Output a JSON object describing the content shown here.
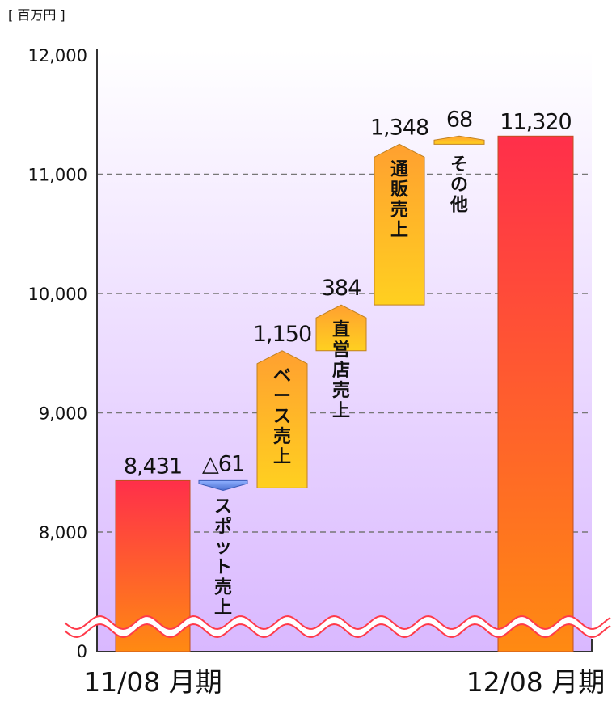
{
  "chart_data": {
    "type": "bar",
    "subtype": "waterfall",
    "unit_label": "[ 百万円 ]",
    "y_ticks": [
      "0",
      "8,000",
      "9,000",
      "10,000",
      "11,000",
      "12,000"
    ],
    "ylim": [
      7000,
      12000
    ],
    "axis_break": true,
    "grid": "dashed",
    "colors": {
      "total_top": "#ff2f4a",
      "total_bottom": "#ff8a12",
      "step_top": "#ffa030",
      "step_bottom": "#ffd020",
      "negative": "#5b7fd8",
      "plot_bg_top": "#ffffff",
      "plot_bg_bottom": "#d9b8ff",
      "break_line": "#ff3a4a"
    },
    "bars": [
      {
        "kind": "total",
        "value": 8431,
        "value_label": "8,431",
        "category": "11/08 月期"
      },
      {
        "kind": "step",
        "delta": -61,
        "value_label": "△61",
        "chars": [
          "ス",
          "ポ",
          "ッ",
          "ト",
          "売",
          "上"
        ]
      },
      {
        "kind": "step",
        "delta": 1150,
        "value_label": "1,150",
        "chars": [
          "ベ",
          "ー",
          "ス",
          "売",
          "上"
        ]
      },
      {
        "kind": "step",
        "delta": 384,
        "value_label": "384",
        "chars": [
          "直",
          "営",
          "店",
          "売",
          "上"
        ]
      },
      {
        "kind": "step",
        "delta": 1348,
        "value_label": "1,348",
        "chars": [
          "通",
          "販",
          "売",
          "上"
        ]
      },
      {
        "kind": "step",
        "delta": 68,
        "value_label": "68",
        "chars": [
          "そ",
          "の",
          "他"
        ]
      },
      {
        "kind": "total",
        "value": 11320,
        "value_label": "11,320",
        "category": "12/08 月期"
      }
    ]
  }
}
